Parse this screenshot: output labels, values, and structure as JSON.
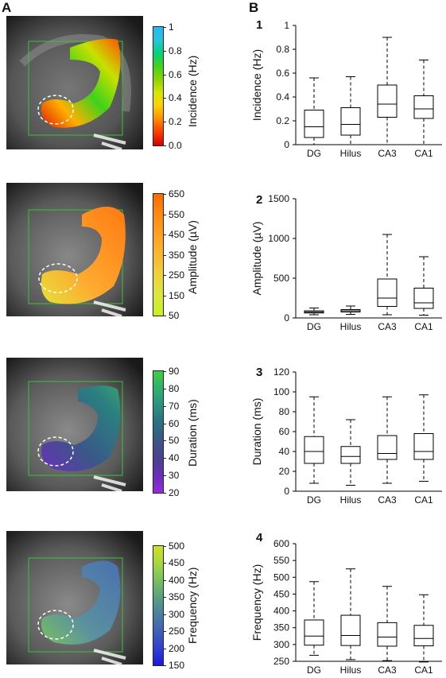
{
  "panels": {
    "a_label": "A",
    "b_label": "B"
  },
  "rows": [
    {
      "num": "1",
      "colorbar": {
        "title": "Incidence (Hz)",
        "ticks": [
          "1",
          "0.8",
          "0.6",
          "0.4",
          "0.2",
          "0.0"
        ],
        "gradient": [
          "#29b6f6",
          "#26c6da",
          "#00d27a",
          "#44d21a",
          "#8ed400",
          "#d6e600",
          "#ffd000",
          "#ff8c00",
          "#ff3a00",
          "#d40000"
        ]
      }
    },
    {
      "num": "2",
      "colorbar": {
        "title": "Amplitude (µV)",
        "ticks": [
          "650",
          "550",
          "450",
          "350",
          "250",
          "150",
          "50"
        ],
        "gradient": [
          "#ff6a00",
          "#ff8a10",
          "#ffa020",
          "#f9b830",
          "#eed23a",
          "#dce83a",
          "#c8f020"
        ]
      }
    },
    {
      "num": "3",
      "colorbar": {
        "title": "Duration (ms)",
        "ticks": [
          "90",
          "80",
          "70",
          "60",
          "50",
          "40",
          "30",
          "20"
        ],
        "gradient": [
          "#40d040",
          "#2fb070",
          "#2a9080",
          "#2a7080",
          "#3a5888",
          "#4a4090",
          "#6a30b8",
          "#9a28e0"
        ]
      }
    },
    {
      "num": "4",
      "colorbar": {
        "title": "Frequency (Hz)",
        "ticks": [
          "500",
          "450",
          "400",
          "350",
          "300",
          "250",
          "200",
          "150"
        ],
        "gradient": [
          "#d0e020",
          "#a8d840",
          "#78c060",
          "#58a080",
          "#4a80a0",
          "#4060b8",
          "#3040d0",
          "#1a1ae0"
        ]
      }
    }
  ],
  "chart_data": [
    {
      "type": "box",
      "panel": "1",
      "categories": [
        "DG",
        "Hilus",
        "CA3",
        "CA1"
      ],
      "ylabel": "Incidence (Hz)",
      "ylim": [
        0,
        1
      ],
      "yticks": [
        "0",
        "0.2",
        "0.4",
        "0.6",
        "0.8",
        "1"
      ],
      "boxes": [
        {
          "min": 0.0,
          "q1": 0.06,
          "median": 0.15,
          "q3": 0.29,
          "max": 0.56
        },
        {
          "min": 0.0,
          "q1": 0.08,
          "median": 0.17,
          "q3": 0.31,
          "max": 0.57
        },
        {
          "min": 0.0,
          "q1": 0.23,
          "median": 0.34,
          "q3": 0.5,
          "max": 0.9
        },
        {
          "min": 0.0,
          "q1": 0.22,
          "median": 0.3,
          "q3": 0.41,
          "max": 0.71
        }
      ]
    },
    {
      "type": "box",
      "panel": "2",
      "categories": [
        "DG",
        "Hilus",
        "CA3",
        "CA1"
      ],
      "ylabel": "Amplitude (µV)",
      "ylim": [
        0,
        1500
      ],
      "yticks": [
        "0",
        "500",
        "1000",
        "1500"
      ],
      "boxes": [
        {
          "min": 40,
          "q1": 62,
          "median": 75,
          "q3": 90,
          "max": 125
        },
        {
          "min": 45,
          "q1": 75,
          "median": 90,
          "q3": 105,
          "max": 150
        },
        {
          "min": 40,
          "q1": 145,
          "median": 250,
          "q3": 490,
          "max": 1050
        },
        {
          "min": 35,
          "q1": 120,
          "median": 190,
          "q3": 375,
          "max": 770
        }
      ]
    },
    {
      "type": "box",
      "panel": "3",
      "categories": [
        "DG",
        "Hilus",
        "CA3",
        "CA1"
      ],
      "ylabel": "Duration (ms)",
      "ylim": [
        0,
        120
      ],
      "yticks": [
        "0",
        "20",
        "40",
        "60",
        "80",
        "100",
        "120"
      ],
      "boxes": [
        {
          "min": 8,
          "q1": 28,
          "median": 40,
          "q3": 55,
          "max": 95
        },
        {
          "min": 6,
          "q1": 28,
          "median": 35,
          "q3": 45,
          "max": 72
        },
        {
          "min": 8,
          "q1": 32,
          "median": 38,
          "q3": 56,
          "max": 95
        },
        {
          "min": 10,
          "q1": 32,
          "median": 40,
          "q3": 58,
          "max": 97
        }
      ]
    },
    {
      "type": "box",
      "panel": "4",
      "categories": [
        "DG",
        "Hilus",
        "CA3",
        "CA1"
      ],
      "ylabel": "Frequency (Hz)",
      "ylim": [
        250,
        600
      ],
      "yticks": [
        "250",
        "300",
        "350",
        "400",
        "450",
        "500",
        "550",
        "600"
      ],
      "boxes": [
        {
          "min": 268,
          "q1": 298,
          "median": 325,
          "q3": 373,
          "max": 487
        },
        {
          "min": 255,
          "q1": 297,
          "median": 327,
          "q3": 387,
          "max": 525
        },
        {
          "min": 252,
          "q1": 295,
          "median": 322,
          "q3": 365,
          "max": 473
        },
        {
          "min": 248,
          "q1": 296,
          "median": 318,
          "q3": 357,
          "max": 448
        }
      ]
    }
  ]
}
